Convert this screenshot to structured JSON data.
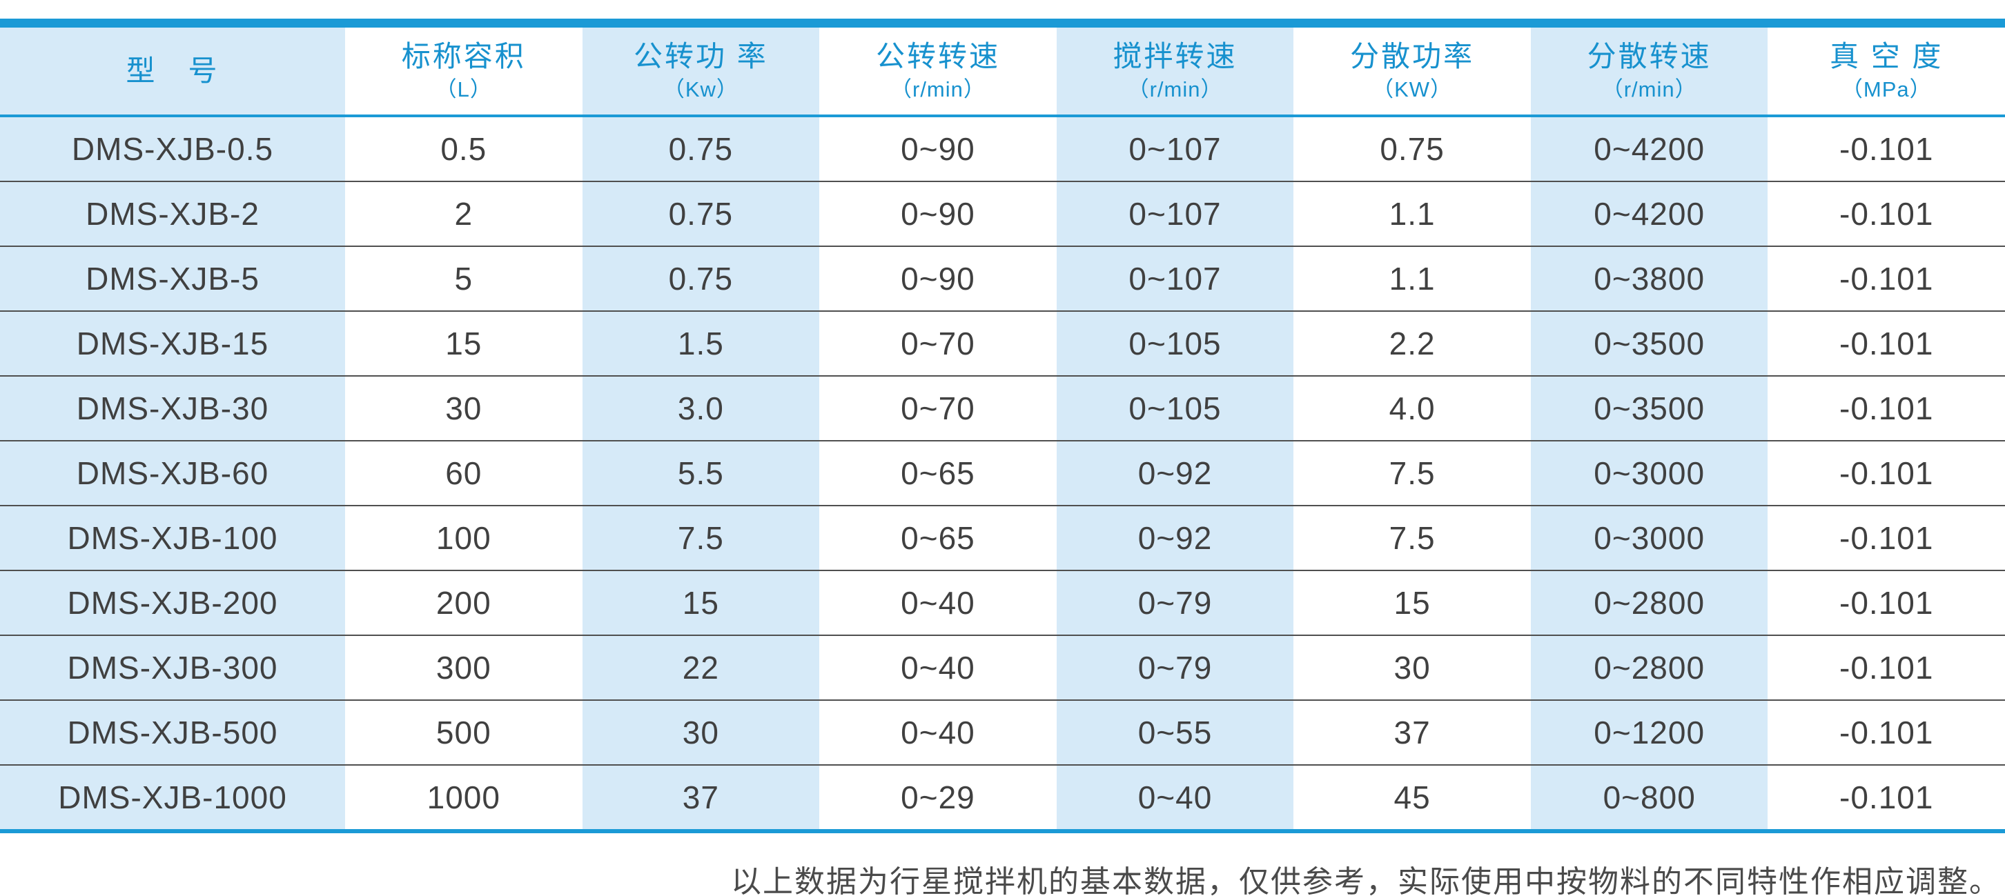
{
  "colors": {
    "accent_blue": "#1b9ad6",
    "header_text_blue": "#1791ce",
    "shaded_column_bg": "#d6eaf8",
    "body_text": "#404040",
    "row_separator": "#4f4f4f",
    "note_text": "#4a4a4a",
    "page_background": "#ffffff"
  },
  "table": {
    "columns": [
      {
        "title": "型　号",
        "unit": ""
      },
      {
        "title": "标称容积",
        "unit": "（L）"
      },
      {
        "title": "公转功 率",
        "unit": "（Kw）"
      },
      {
        "title": "公转转速",
        "unit": "（r/min）"
      },
      {
        "title": "搅拌转速",
        "unit": "（r/min）"
      },
      {
        "title": "分散功率",
        "unit": "（KW）"
      },
      {
        "title": "分散转速",
        "unit": "（r/min）"
      },
      {
        "title": "真 空 度",
        "unit": "（MPa）"
      }
    ],
    "rows": [
      {
        "cells": [
          "DMS-XJB-0.5",
          "0.5",
          "0.75",
          "0~90",
          "0~107",
          "0.75",
          "0~4200",
          "-0.101"
        ]
      },
      {
        "cells": [
          "DMS-XJB-2",
          "2",
          "0.75",
          "0~90",
          "0~107",
          "1.1",
          "0~4200",
          "-0.101"
        ]
      },
      {
        "cells": [
          "DMS-XJB-5",
          "5",
          "0.75",
          "0~90",
          "0~107",
          "1.1",
          "0~3800",
          "-0.101"
        ]
      },
      {
        "cells": [
          "DMS-XJB-15",
          "15",
          "1.5",
          "0~70",
          "0~105",
          "2.2",
          "0~3500",
          "-0.101"
        ]
      },
      {
        "cells": [
          "DMS-XJB-30",
          "30",
          "3.0",
          "0~70",
          "0~105",
          "4.0",
          "0~3500",
          "-0.101"
        ]
      },
      {
        "cells": [
          "DMS-XJB-60",
          "60",
          "5.5",
          "0~65",
          "0~92",
          "7.5",
          "0~3000",
          "-0.101"
        ]
      },
      {
        "cells": [
          "DMS-XJB-100",
          "100",
          "7.5",
          "0~65",
          "0~92",
          "7.5",
          "0~3000",
          "-0.101"
        ]
      },
      {
        "cells": [
          "DMS-XJB-200",
          "200",
          "15",
          "0~40",
          "0~79",
          "15",
          "0~2800",
          "-0.101"
        ]
      },
      {
        "cells": [
          "DMS-XJB-300",
          "300",
          "22",
          "0~40",
          "0~79",
          "30",
          "0~2800",
          "-0.101"
        ]
      },
      {
        "cells": [
          "DMS-XJB-500",
          "500",
          "30",
          "0~40",
          "0~55",
          "37",
          "0~1200",
          "-0.101"
        ]
      },
      {
        "cells": [
          "DMS-XJB-1000",
          "1000",
          "37",
          "0~29",
          "0~40",
          "45",
          "0~800",
          "-0.101"
        ]
      }
    ]
  },
  "footer": {
    "note": "以上数据为行星搅拌机的基本数据，仅供参考，实际使用中按物料的不同特性作相应调整。"
  }
}
